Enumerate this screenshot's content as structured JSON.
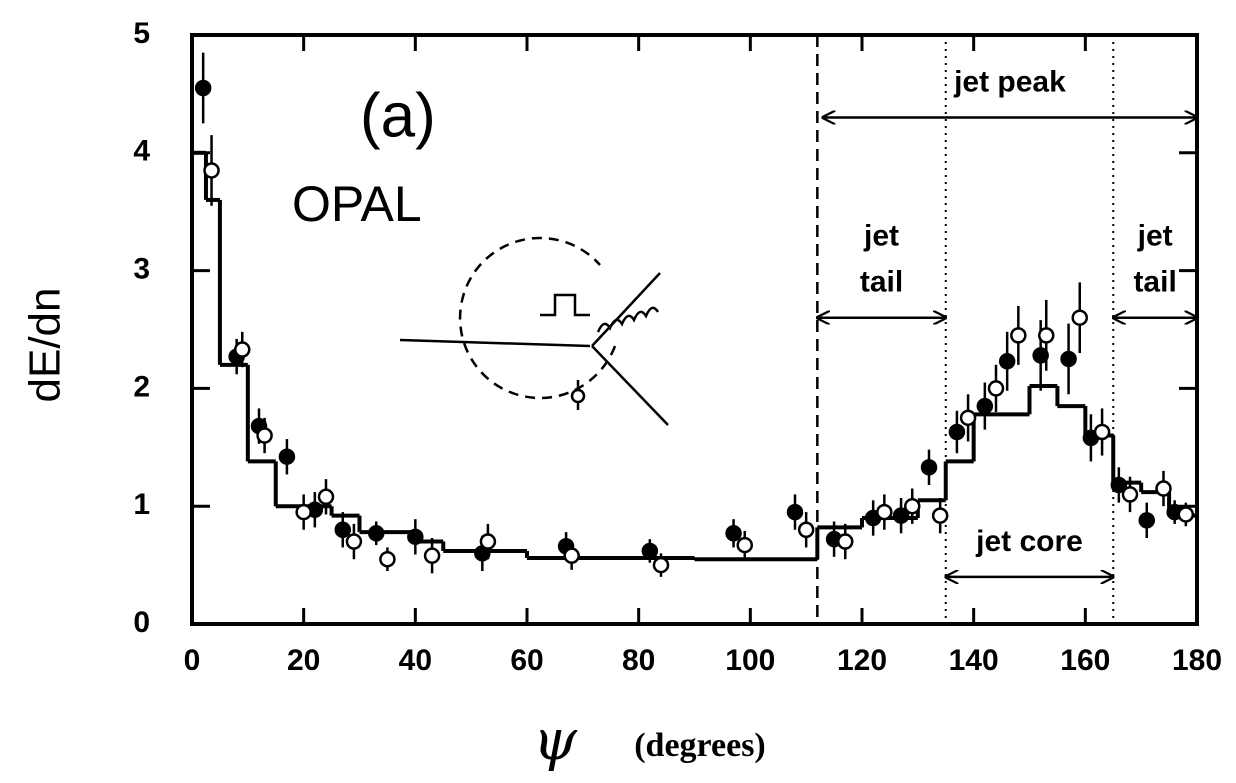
{
  "chart_data": {
    "type": "step",
    "label": "(a)",
    "experiment": "OPAL",
    "ylabel": "dE/dn",
    "xlabel": "ψ",
    "xlabel_unit": "(degrees)",
    "xlim": [
      0,
      180
    ],
    "ylim": [
      0,
      5
    ],
    "xticks": [
      0,
      20,
      40,
      60,
      80,
      100,
      120,
      140,
      160,
      180
    ],
    "yticks": [
      0,
      1,
      2,
      3,
      4,
      5
    ],
    "histogram": {
      "bins": [
        0,
        2.5,
        5,
        10,
        15,
        25,
        30,
        40,
        45,
        60,
        90,
        112,
        120,
        130,
        135,
        140,
        150,
        155,
        160,
        165,
        170,
        175,
        180
      ],
      "counts": [
        4.0,
        3.6,
        2.2,
        1.38,
        1.0,
        0.92,
        0.78,
        0.7,
        0.62,
        0.56,
        0.55,
        0.82,
        0.9,
        1.05,
        1.38,
        1.78,
        2.02,
        1.85,
        1.6,
        1.2,
        1.12,
        0.92
      ]
    },
    "series": [
      {
        "marker": "filled",
        "x": [
          2,
          8,
          12,
          17,
          22,
          27,
          33,
          40,
          52,
          67,
          82,
          97,
          108,
          115,
          122,
          127,
          132,
          137,
          142,
          146,
          152,
          157,
          161,
          166,
          171,
          176
        ],
        "values": [
          4.55,
          2.27,
          1.68,
          1.42,
          0.97,
          0.8,
          0.77,
          0.74,
          0.6,
          0.66,
          0.62,
          0.77,
          0.95,
          0.72,
          0.9,
          0.92,
          1.33,
          1.63,
          1.85,
          2.23,
          2.28,
          2.25,
          1.58,
          1.18,
          0.88,
          0.95
        ],
        "errors": [
          0.3,
          0.15,
          0.15,
          0.15,
          0.15,
          0.15,
          0.1,
          0.15,
          0.15,
          0.12,
          0.1,
          0.12,
          0.15,
          0.15,
          0.15,
          0.15,
          0.15,
          0.18,
          0.2,
          0.25,
          0.3,
          0.3,
          0.2,
          0.15,
          0.15,
          0.1
        ]
      },
      {
        "marker": "open",
        "x": [
          3.5,
          9,
          13,
          20,
          24,
          29,
          35,
          43,
          53,
          68,
          84,
          99,
          110,
          117,
          124,
          129,
          134,
          139,
          144,
          148,
          153,
          159,
          163,
          168,
          174,
          178
        ],
        "values": [
          3.85,
          2.33,
          1.6,
          0.95,
          1.08,
          0.7,
          0.55,
          0.58,
          0.7,
          0.58,
          0.5,
          0.67,
          0.8,
          0.7,
          0.95,
          1.0,
          0.92,
          1.75,
          2.0,
          2.45,
          2.45,
          2.6,
          1.63,
          1.1,
          1.15,
          0.93
        ],
        "errors": [
          0.3,
          0.15,
          0.15,
          0.15,
          0.15,
          0.15,
          0.1,
          0.15,
          0.15,
          0.12,
          0.1,
          0.12,
          0.15,
          0.15,
          0.15,
          0.15,
          0.15,
          0.2,
          0.2,
          0.25,
          0.3,
          0.3,
          0.2,
          0.15,
          0.15,
          0.1
        ]
      }
    ],
    "vlines": [
      {
        "x": 112,
        "style": "dashed"
      },
      {
        "x": 135,
        "style": "dotted"
      },
      {
        "x": 165,
        "style": "dotted"
      }
    ],
    "annotations": [
      {
        "text": [
          "jet peak"
        ],
        "x": [
          113,
          180
        ],
        "y": 4.3,
        "pos": "above"
      },
      {
        "text": [
          "jet",
          "tail"
        ],
        "x": [
          112,
          135
        ],
        "y": 2.6,
        "pos": "above"
      },
      {
        "text": [
          "jet",
          "tail"
        ],
        "x": [
          165,
          180
        ],
        "y": 2.6,
        "pos": "above"
      },
      {
        "text": [
          "jet core"
        ],
        "x": [
          135,
          165
        ],
        "y": 0.4,
        "pos": "above"
      }
    ]
  }
}
